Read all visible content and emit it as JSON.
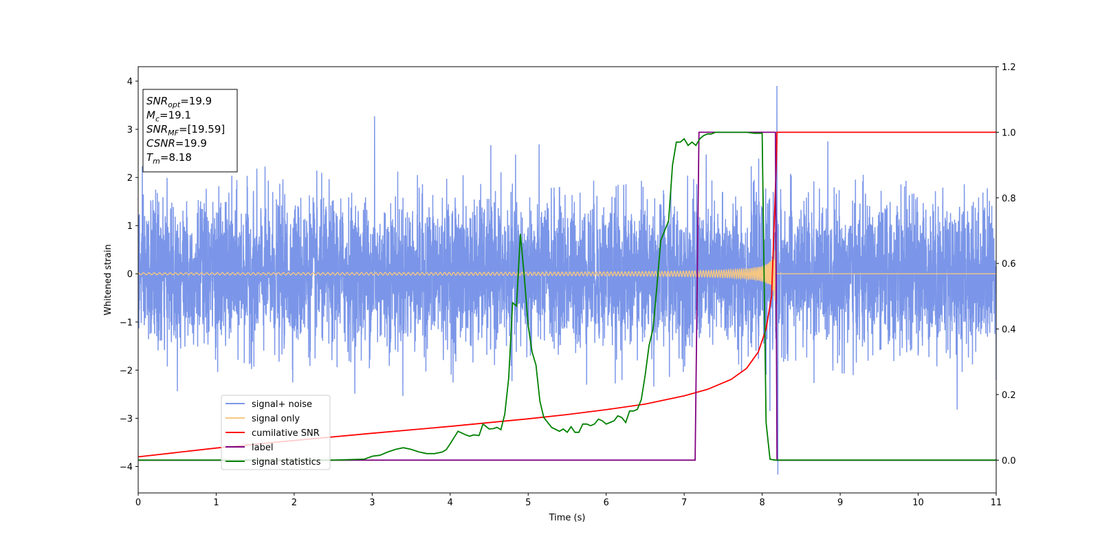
{
  "chart_data": {
    "type": "line",
    "xlabel": "Time (s)",
    "ylabel": "Whitened strain",
    "xlim": [
      0,
      11
    ],
    "ylim_left": [
      -4.55,
      4.3
    ],
    "ylim_right": [
      -0.1,
      1.2
    ],
    "x_ticks": [
      "0",
      "1",
      "2",
      "3",
      "4",
      "5",
      "6",
      "7",
      "8",
      "9",
      "10",
      "11"
    ],
    "y_ticks_left": [
      "4",
      "3",
      "2",
      "1",
      "0",
      "−1",
      "−2",
      "−3",
      "−4"
    ],
    "y_ticks_right": [
      "1.2",
      "1.0",
      "0.8",
      "0.6",
      "0.4",
      "0.2",
      "0.0"
    ],
    "grid": false,
    "legend_placement": "lower-left",
    "info_box": [
      {
        "sym": "SNR",
        "sub": "opt",
        "val": "=19.9"
      },
      {
        "sym": "M",
        "sub": "c",
        "val": "=19.1"
      },
      {
        "sym": "SNR",
        "sub": "MF",
        "val": "=[19.59]"
      },
      {
        "sym": "CSNR",
        "sub": "",
        "val": "=19.9"
      },
      {
        "sym": "T",
        "sub": "m",
        "val": "=8.18"
      }
    ],
    "series": [
      {
        "name": "signal+ noise",
        "axis": "left",
        "color": "#7b96e8",
        "description": "noise with standard deviation ~0.75, spikes to about 3.9 and -4.2 near t=8.18",
        "noise_std": 0.75,
        "extremes": [
          [
            3.03,
            3.27
          ],
          [
            8.19,
            3.9
          ],
          [
            8.2,
            -4.17
          ],
          [
            8.1,
            -2.85
          ],
          [
            10.5,
            -2.82
          ]
        ]
      },
      {
        "name": "signal only",
        "axis": "left",
        "color": "#f5c783",
        "description": "chirp with amplitude ~0.02 at t=0 growing to ~1.3 at t=8.18, zero afterwards",
        "t_merger": 8.18,
        "amplitude_end": 1.3
      },
      {
        "name": "cumilative SNR",
        "axis": "right",
        "color": "#ff0000",
        "x": [
          0,
          1,
          2,
          3,
          4,
          5,
          5.5,
          6,
          6.5,
          7,
          7.3,
          7.6,
          7.8,
          7.95,
          8.05,
          8.12,
          8.18,
          8.19,
          11
        ],
        "y": [
          0.01,
          0.037,
          0.06,
          0.082,
          0.103,
          0.126,
          0.139,
          0.154,
          0.171,
          0.196,
          0.216,
          0.246,
          0.28,
          0.33,
          0.4,
          0.5,
          0.9,
          1.0,
          1.0
        ]
      },
      {
        "name": "label",
        "axis": "right",
        "color": "#800080",
        "x": [
          0,
          7.14,
          7.19,
          8.17,
          8.19,
          11
        ],
        "y": [
          0.0,
          0.0,
          1.0,
          1.0,
          0.0,
          0.0
        ]
      },
      {
        "name": "signal statistics",
        "axis": "right",
        "color": "#008000",
        "x": [
          0,
          2.5,
          2.9,
          3.0,
          3.1,
          3.2,
          3.3,
          3.4,
          3.5,
          3.6,
          3.7,
          3.8,
          3.9,
          3.95,
          4.0,
          4.1,
          4.2,
          4.25,
          4.3,
          4.37,
          4.42,
          4.5,
          4.55,
          4.6,
          4.65,
          4.7,
          4.75,
          4.8,
          4.85,
          4.9,
          4.95,
          5.0,
          5.05,
          5.1,
          5.15,
          5.2,
          5.3,
          5.4,
          5.45,
          5.5,
          5.55,
          5.6,
          5.65,
          5.7,
          5.75,
          5.8,
          5.85,
          5.9,
          5.95,
          6.0,
          6.05,
          6.1,
          6.15,
          6.2,
          6.25,
          6.3,
          6.35,
          6.4,
          6.45,
          6.5,
          6.55,
          6.6,
          6.65,
          6.7,
          6.75,
          6.8,
          6.85,
          6.9,
          6.95,
          7.0,
          7.05,
          7.1,
          7.15,
          7.2,
          7.25,
          7.3,
          7.35,
          7.4,
          7.45,
          7.5,
          7.55,
          7.6,
          7.7,
          7.8,
          7.9,
          8.0,
          8.05,
          8.1,
          8.14,
          8.18,
          8.2,
          8.25,
          8.3,
          11
        ],
        "y": [
          0.0,
          0.0,
          0.003,
          0.012,
          0.015,
          0.025,
          0.033,
          0.038,
          0.033,
          0.025,
          0.02,
          0.02,
          0.025,
          0.032,
          0.05,
          0.088,
          0.077,
          0.073,
          0.077,
          0.075,
          0.11,
          0.095,
          0.096,
          0.1,
          0.093,
          0.14,
          0.25,
          0.48,
          0.47,
          0.69,
          0.56,
          0.41,
          0.33,
          0.29,
          0.18,
          0.13,
          0.1,
          0.088,
          0.095,
          0.085,
          0.102,
          0.085,
          0.085,
          0.11,
          0.11,
          0.105,
          0.11,
          0.125,
          0.12,
          0.11,
          0.115,
          0.12,
          0.135,
          0.13,
          0.115,
          0.15,
          0.15,
          0.155,
          0.185,
          0.26,
          0.35,
          0.4,
          0.53,
          0.67,
          0.7,
          0.73,
          0.9,
          0.97,
          0.97,
          0.98,
          0.96,
          0.97,
          0.96,
          0.98,
          0.99,
          0.995,
          0.995,
          1.0,
          1.0,
          1.0,
          1.0,
          1.0,
          1.0,
          1.0,
          0.997,
          0.997,
          0.115,
          0.003,
          0.001,
          0.0,
          0.0,
          0.0,
          0.0,
          0.0
        ]
      }
    ]
  }
}
